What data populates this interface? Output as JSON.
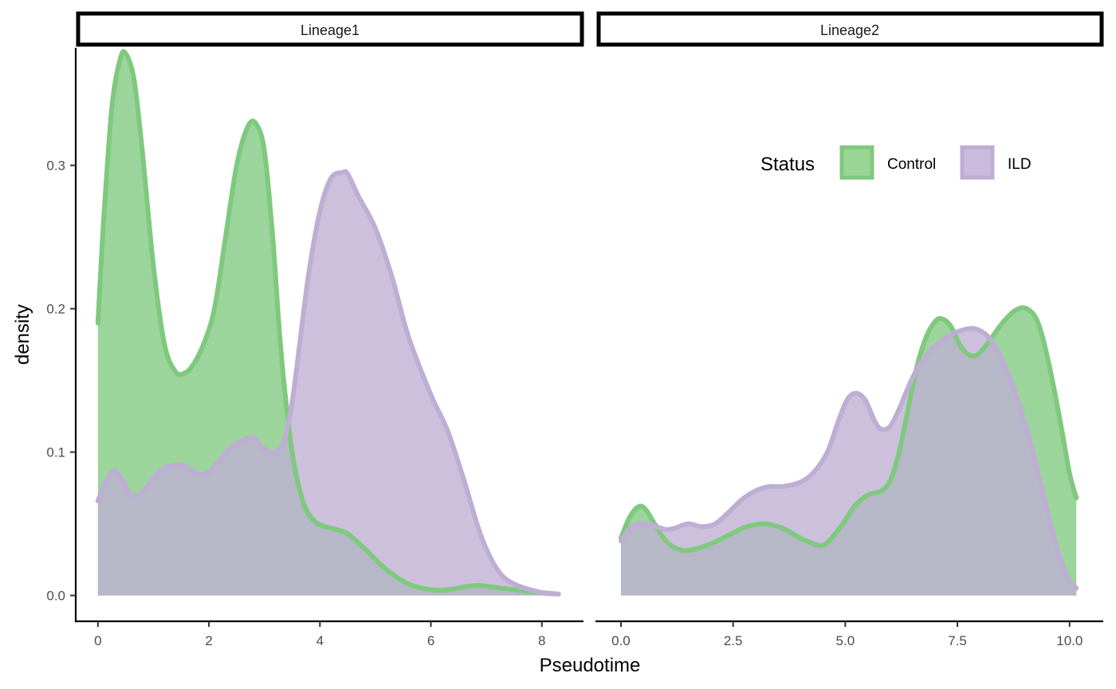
{
  "chart_data": {
    "type": "area",
    "xlabel": "Pseudotime",
    "ylabel": "density",
    "ylim": [
      -0.018,
      0.382
    ],
    "yticks": [
      0.0,
      0.1,
      0.2,
      0.3
    ],
    "ytick_labels": [
      "0.0",
      "0.1",
      "0.2",
      "0.3"
    ],
    "grid": false,
    "legend": {
      "title": "Status",
      "placement": "top-right",
      "entries": [
        {
          "label": "Control",
          "fill": "#99D594",
          "stroke": "#7FC97F"
        },
        {
          "label": "ILD",
          "fill": "#CBBCDF",
          "stroke": "#BEAED4"
        }
      ]
    },
    "overlap_color": "#B3B1C6",
    "panels": [
      {
        "strip": "Lineage1",
        "xlim": [
          -0.4,
          8.75
        ],
        "xticks": [
          0,
          2,
          4,
          6,
          8
        ],
        "xtick_labels": [
          "0",
          "2",
          "4",
          "6",
          "8"
        ],
        "series": [
          {
            "name": "Control",
            "x": [
              0,
              0.1,
              0.25,
              0.4,
              0.5,
              0.65,
              0.8,
              1.0,
              1.2,
              1.4,
              1.55,
              1.7,
              1.9,
              2.1,
              2.3,
              2.5,
              2.7,
              2.85,
              3.0,
              3.15,
              3.3,
              3.5,
              3.7,
              3.9,
              4.1,
              4.3,
              4.5,
              4.8,
              5.2,
              5.6,
              6.0,
              6.3,
              6.6,
              6.85,
              7.1,
              7.5,
              8.0,
              8.3
            ],
            "y": [
              0.19,
              0.26,
              0.34,
              0.374,
              0.378,
              0.36,
              0.31,
              0.23,
              0.175,
              0.156,
              0.155,
              0.16,
              0.175,
              0.2,
              0.25,
              0.3,
              0.327,
              0.329,
              0.31,
              0.25,
              0.17,
              0.1,
              0.065,
              0.052,
              0.048,
              0.046,
              0.043,
              0.033,
              0.018,
              0.008,
              0.004,
              0.004,
              0.006,
              0.007,
              0.006,
              0.004,
              0.002,
              0.001
            ]
          },
          {
            "name": "ILD",
            "x": [
              0,
              0.15,
              0.3,
              0.45,
              0.6,
              0.8,
              1.0,
              1.2,
              1.5,
              1.8,
              2.0,
              2.2,
              2.45,
              2.6,
              2.8,
              3.0,
              3.2,
              3.35,
              3.5,
              3.65,
              3.8,
              4.0,
              4.2,
              4.4,
              4.5,
              4.7,
              5.0,
              5.3,
              5.6,
              6.0,
              6.3,
              6.6,
              6.9,
              7.2,
              7.5,
              8.0,
              8.3
            ],
            "y": [
              0.066,
              0.08,
              0.087,
              0.08,
              0.07,
              0.072,
              0.082,
              0.089,
              0.091,
              0.085,
              0.086,
              0.095,
              0.105,
              0.108,
              0.11,
              0.102,
              0.1,
              0.108,
              0.135,
              0.18,
              0.225,
              0.268,
              0.291,
              0.295,
              0.294,
              0.278,
              0.256,
              0.222,
              0.18,
              0.14,
              0.115,
              0.08,
              0.042,
              0.018,
              0.008,
              0.002,
              0.001
            ]
          }
        ]
      },
      {
        "strip": "Lineage2",
        "xlim": [
          -0.55,
          10.75
        ],
        "xticks": [
          0,
          2.5,
          5,
          7.5,
          10
        ],
        "xtick_labels": [
          "0.0",
          "2.5",
          "5.0",
          "7.5",
          "10.0"
        ],
        "series": [
          {
            "name": "Control",
            "x": [
              0,
              0.2,
              0.4,
              0.55,
              0.75,
              1.0,
              1.3,
              1.6,
              2.0,
              2.4,
              2.8,
              3.2,
              3.6,
              4.0,
              4.4,
              4.6,
              4.9,
              5.2,
              5.5,
              5.8,
              6.0,
              6.2,
              6.4,
              6.6,
              6.8,
              7.0,
              7.15,
              7.35,
              7.55,
              7.75,
              7.95,
              8.2,
              8.5,
              8.8,
              9.05,
              9.3,
              9.55,
              9.8,
              10.0,
              10.15
            ],
            "y": [
              0.04,
              0.055,
              0.062,
              0.06,
              0.05,
              0.038,
              0.032,
              0.032,
              0.036,
              0.042,
              0.048,
              0.05,
              0.047,
              0.04,
              0.035,
              0.037,
              0.048,
              0.062,
              0.07,
              0.073,
              0.08,
              0.1,
              0.13,
              0.16,
              0.18,
              0.191,
              0.193,
              0.188,
              0.175,
              0.168,
              0.168,
              0.177,
              0.19,
              0.199,
              0.2,
              0.19,
              0.16,
              0.12,
              0.085,
              0.068
            ]
          },
          {
            "name": "ILD",
            "x": [
              0,
              0.2,
              0.4,
              0.6,
              0.8,
              1.0,
              1.2,
              1.5,
              1.8,
              2.1,
              2.4,
              2.7,
              3.0,
              3.3,
              3.6,
              4.0,
              4.3,
              4.6,
              4.85,
              5.05,
              5.25,
              5.45,
              5.65,
              5.8,
              6.0,
              6.2,
              6.4,
              6.6,
              6.8,
              7.0,
              7.3,
              7.6,
              7.9,
              8.2,
              8.5,
              8.8,
              9.1,
              9.4,
              9.7,
              9.95,
              10.15
            ],
            "y": [
              0.038,
              0.047,
              0.05,
              0.05,
              0.048,
              0.046,
              0.047,
              0.05,
              0.048,
              0.05,
              0.058,
              0.067,
              0.073,
              0.076,
              0.076,
              0.079,
              0.086,
              0.1,
              0.122,
              0.137,
              0.141,
              0.136,
              0.122,
              0.116,
              0.118,
              0.13,
              0.145,
              0.158,
              0.167,
              0.174,
              0.181,
              0.185,
              0.186,
              0.18,
              0.165,
              0.14,
              0.11,
              0.072,
              0.035,
              0.013,
              0.005
            ]
          }
        ]
      }
    ]
  }
}
